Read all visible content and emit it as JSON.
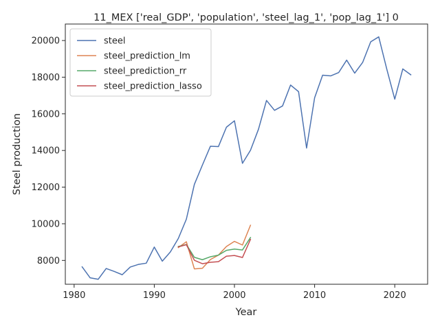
{
  "chart_data": {
    "type": "line",
    "title": "11_MEX ['real_GDP', 'population', 'steel_lag_1', 'pop_lag_1'] 0",
    "xlabel": "Year",
    "ylabel": "Steel production",
    "xlim": [
      1978.9,
      2024.1
    ],
    "ylim": [
      6700,
      20900
    ],
    "xticks": [
      1980,
      1990,
      2000,
      2010,
      2020
    ],
    "yticks": [
      8000,
      10000,
      12000,
      14000,
      16000,
      18000,
      20000
    ],
    "legend_position": "upper-left",
    "grid": false,
    "series": [
      {
        "name": "steel",
        "color": "#4c72b0",
        "x": [
          1981,
          1982,
          1983,
          1984,
          1985,
          1986,
          1987,
          1988,
          1989,
          1990,
          1991,
          1992,
          1993,
          1994,
          1995,
          1996,
          1997,
          1998,
          1999,
          2000,
          2001,
          2002,
          2003,
          2004,
          2005,
          2006,
          2007,
          2008,
          2009,
          2010,
          2011,
          2012,
          2013,
          2014,
          2015,
          2016,
          2017,
          2018,
          2019,
          2020,
          2021,
          2022
        ],
        "y": [
          7650,
          7050,
          6970,
          7560,
          7400,
          7220,
          7640,
          7780,
          7850,
          8730,
          7960,
          8460,
          9200,
          10250,
          12150,
          13200,
          14230,
          14210,
          15270,
          15620,
          13300,
          14010,
          15160,
          16730,
          16190,
          16430,
          17570,
          17210,
          14130,
          16870,
          18110,
          18070,
          18250,
          18930,
          18220,
          18810,
          19930,
          20200,
          18450,
          16800,
          18450,
          18130
        ]
      },
      {
        "name": "steel_prediction_lm",
        "color": "#dd8452",
        "x": [
          1993,
          1994,
          1995,
          1996,
          1997,
          1998,
          1999,
          2000,
          2001,
          2002
        ],
        "y": [
          8700,
          9020,
          7540,
          7570,
          8050,
          8290,
          8760,
          9040,
          8840,
          9920
        ]
      },
      {
        "name": "steel_prediction_rr",
        "color": "#55a868",
        "x": [
          1993,
          1994,
          1995,
          1996,
          1997,
          1998,
          1999,
          2000,
          2001,
          2002
        ],
        "y": [
          8760,
          8870,
          8170,
          8040,
          8200,
          8290,
          8550,
          8620,
          8570,
          9250
        ]
      },
      {
        "name": "steel_prediction_lasso",
        "color": "#c44e52",
        "x": [
          1993,
          1994,
          1995,
          1996,
          1997,
          1998,
          1999,
          2000,
          2001,
          2002
        ],
        "y": [
          8740,
          8860,
          8010,
          7820,
          7900,
          7930,
          8230,
          8270,
          8160,
          9150
        ]
      }
    ]
  }
}
